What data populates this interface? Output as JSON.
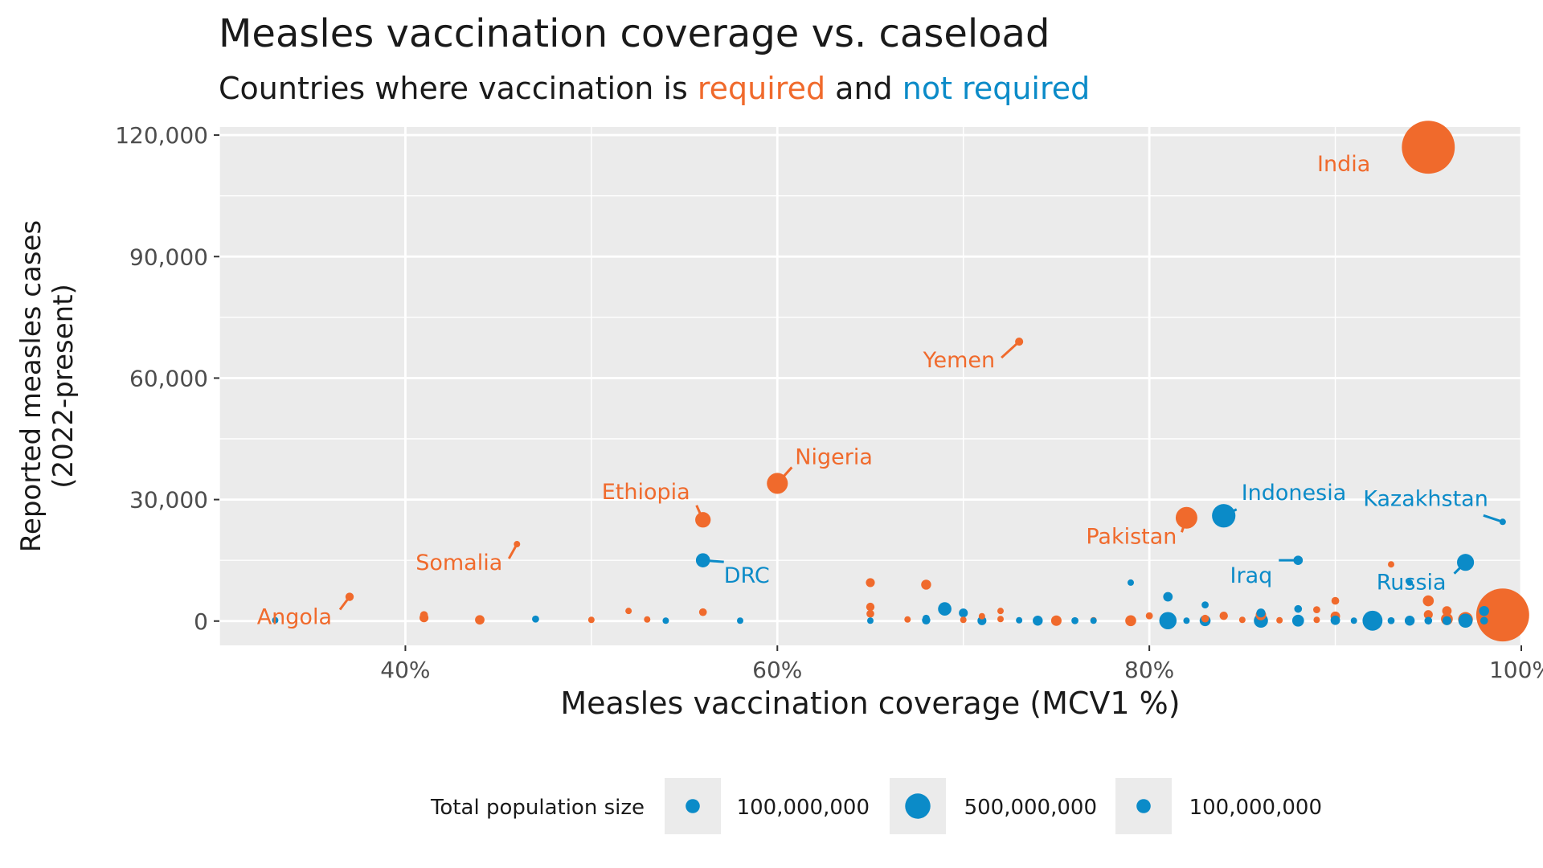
{
  "header": {
    "title": "Measles vaccination coverage vs. caseload",
    "subtitle_prefix": "Countries where vaccination is ",
    "subtitle_required": "required",
    "subtitle_and": " and ",
    "subtitle_not_required": "not required"
  },
  "colors": {
    "required": "#f06a2c",
    "not_required": "#0b8bc8",
    "panel": "#ebebeb",
    "grid": "#ffffff"
  },
  "chart_data": {
    "type": "scatter",
    "title": "Measles vaccination coverage vs. caseload",
    "subtitle": "Countries where vaccination is required and not required",
    "xlabel": "Measles vaccination coverage (MCV1 %)",
    "ylabel_lines": [
      "Reported measles cases",
      "(2022-present)"
    ],
    "xlim": [
      30,
      100
    ],
    "ylim": [
      -6000,
      122000
    ],
    "xticks": [
      {
        "value": 40,
        "label": "40%"
      },
      {
        "value": 60,
        "label": "60%"
      },
      {
        "value": 80,
        "label": "80%"
      },
      {
        "value": 100,
        "label": "100%"
      }
    ],
    "yticks": [
      {
        "value": 0,
        "label": "0"
      },
      {
        "value": 30000,
        "label": "30,000"
      },
      {
        "value": 60000,
        "label": "60,000"
      },
      {
        "value": 90000,
        "label": "90,000"
      },
      {
        "value": 120000,
        "label": "120,000"
      }
    ],
    "grid": true,
    "legend": {
      "title": "Total population size",
      "placement": "bottom",
      "entries": [
        {
          "label": "100,000,000",
          "population": 100000000
        },
        {
          "label": "500,000,000",
          "population": 500000000
        },
        {
          "label": "100,000,000",
          "population": 100000000
        }
      ]
    },
    "labeled_points": [
      {
        "name": "India",
        "x": 95,
        "y": 117000,
        "population": 1400000000,
        "group": "required"
      },
      {
        "name": "Yemen",
        "x": 73,
        "y": 69000,
        "population": 33000000,
        "group": "required"
      },
      {
        "name": "Nigeria",
        "x": 60,
        "y": 34000,
        "population": 220000000,
        "group": "required"
      },
      {
        "name": "Ethiopia",
        "x": 56,
        "y": 25000,
        "population": 120000000,
        "group": "required"
      },
      {
        "name": "Somalia",
        "x": 46,
        "y": 19000,
        "population": 17000000,
        "group": "required"
      },
      {
        "name": "Angola",
        "x": 37,
        "y": 6000,
        "population": 35000000,
        "group": "required"
      },
      {
        "name": "Pakistan",
        "x": 82,
        "y": 25500,
        "population": 235000000,
        "group": "required"
      },
      {
        "name": "DRC",
        "x": 56,
        "y": 15000,
        "population": 100000000,
        "group": "not_required"
      },
      {
        "name": "Indonesia",
        "x": 84,
        "y": 26000,
        "population": 275000000,
        "group": "not_required"
      },
      {
        "name": "Iraq",
        "x": 88,
        "y": 15000,
        "population": 44000000,
        "group": "not_required"
      },
      {
        "name": "Kazakhstan",
        "x": 99,
        "y": 24500,
        "population": 19000000,
        "group": "not_required"
      },
      {
        "name": "Russia",
        "x": 97,
        "y": 14500,
        "population": 144000000,
        "group": "not_required"
      }
    ],
    "points": [
      {
        "x": 99,
        "y": 1500,
        "population": 1400000000,
        "group": "required"
      },
      {
        "x": 41,
        "y": 1500,
        "population": 30000000,
        "group": "required"
      },
      {
        "x": 41,
        "y": 800,
        "population": 40000000,
        "group": "required"
      },
      {
        "x": 44,
        "y": 300,
        "population": 45000000,
        "group": "required"
      },
      {
        "x": 50,
        "y": 300,
        "population": 10000000,
        "group": "required"
      },
      {
        "x": 52,
        "y": 2500,
        "population": 15000000,
        "group": "required"
      },
      {
        "x": 53,
        "y": 400,
        "population": 8000000,
        "group": "required"
      },
      {
        "x": 56,
        "y": 2200,
        "population": 30000000,
        "group": "required"
      },
      {
        "x": 65,
        "y": 9500,
        "population": 40000000,
        "group": "required"
      },
      {
        "x": 65,
        "y": 3500,
        "population": 35000000,
        "group": "required"
      },
      {
        "x": 65,
        "y": 1800,
        "population": 30000000,
        "group": "required"
      },
      {
        "x": 67,
        "y": 400,
        "population": 12000000,
        "group": "required"
      },
      {
        "x": 68,
        "y": 9000,
        "population": 50000000,
        "group": "required"
      },
      {
        "x": 70,
        "y": 300,
        "population": 10000000,
        "group": "required"
      },
      {
        "x": 71,
        "y": 1200,
        "population": 15000000,
        "group": "required"
      },
      {
        "x": 72,
        "y": 2500,
        "population": 18000000,
        "group": "required"
      },
      {
        "x": 72,
        "y": 500,
        "population": 12000000,
        "group": "required"
      },
      {
        "x": 75,
        "y": 100,
        "population": 55000000,
        "group": "required"
      },
      {
        "x": 77,
        "y": 200,
        "population": 20000000,
        "group": "required"
      },
      {
        "x": 79,
        "y": 100,
        "population": 60000000,
        "group": "required"
      },
      {
        "x": 80,
        "y": 1300,
        "population": 25000000,
        "group": "required"
      },
      {
        "x": 83,
        "y": 600,
        "population": 30000000,
        "group": "required"
      },
      {
        "x": 84,
        "y": 1300,
        "population": 35000000,
        "group": "required"
      },
      {
        "x": 85,
        "y": 300,
        "population": 12000000,
        "group": "required"
      },
      {
        "x": 86,
        "y": 1500,
        "population": 55000000,
        "group": "required"
      },
      {
        "x": 87,
        "y": 200,
        "population": 10000000,
        "group": "required"
      },
      {
        "x": 89,
        "y": 2800,
        "population": 25000000,
        "group": "required"
      },
      {
        "x": 89,
        "y": 300,
        "population": 20000000,
        "group": "required"
      },
      {
        "x": 90,
        "y": 5000,
        "population": 30000000,
        "group": "required"
      },
      {
        "x": 90,
        "y": 1200,
        "population": 45000000,
        "group": "required"
      },
      {
        "x": 93,
        "y": 14000,
        "population": 20000000,
        "group": "required"
      },
      {
        "x": 95,
        "y": 5000,
        "population": 60000000,
        "group": "required"
      },
      {
        "x": 95,
        "y": 1600,
        "population": 40000000,
        "group": "required"
      },
      {
        "x": 96,
        "y": 2500,
        "population": 45000000,
        "group": "required"
      },
      {
        "x": 96,
        "y": 500,
        "population": 70000000,
        "group": "required"
      },
      {
        "x": 97,
        "y": 400,
        "population": 110000000,
        "group": "required"
      },
      {
        "x": 98,
        "y": 200,
        "population": 50000000,
        "group": "required"
      },
      {
        "x": 33,
        "y": 200,
        "population": 15000000,
        "group": "not_required"
      },
      {
        "x": 47,
        "y": 500,
        "population": 25000000,
        "group": "not_required"
      },
      {
        "x": 54,
        "y": 100,
        "population": 15000000,
        "group": "not_required"
      },
      {
        "x": 58,
        "y": 100,
        "population": 12000000,
        "group": "not_required"
      },
      {
        "x": 65,
        "y": 100,
        "population": 12000000,
        "group": "not_required"
      },
      {
        "x": 68,
        "y": 200,
        "population": 35000000,
        "group": "not_required"
      },
      {
        "x": 68,
        "y": 700,
        "population": 25000000,
        "group": "not_required"
      },
      {
        "x": 69,
        "y": 3000,
        "population": 90000000,
        "group": "not_required"
      },
      {
        "x": 70,
        "y": 2000,
        "population": 40000000,
        "group": "not_required"
      },
      {
        "x": 71,
        "y": 100,
        "population": 40000000,
        "group": "not_required"
      },
      {
        "x": 73,
        "y": 200,
        "population": 15000000,
        "group": "not_required"
      },
      {
        "x": 74,
        "y": 100,
        "population": 50000000,
        "group": "not_required"
      },
      {
        "x": 76,
        "y": 100,
        "population": 25000000,
        "group": "not_required"
      },
      {
        "x": 77,
        "y": 100,
        "population": 20000000,
        "group": "not_required"
      },
      {
        "x": 79,
        "y": 9500,
        "population": 15000000,
        "group": "not_required"
      },
      {
        "x": 81,
        "y": 6000,
        "population": 45000000,
        "group": "not_required"
      },
      {
        "x": 81,
        "y": 100,
        "population": 150000000,
        "group": "not_required"
      },
      {
        "x": 82,
        "y": 100,
        "population": 20000000,
        "group": "not_required"
      },
      {
        "x": 83,
        "y": 4000,
        "population": 25000000,
        "group": "not_required"
      },
      {
        "x": 83,
        "y": 100,
        "population": 60000000,
        "group": "not_required"
      },
      {
        "x": 86,
        "y": 2000,
        "population": 40000000,
        "group": "not_required"
      },
      {
        "x": 86,
        "y": 100,
        "population": 100000000,
        "group": "not_required"
      },
      {
        "x": 88,
        "y": 3000,
        "population": 30000000,
        "group": "not_required"
      },
      {
        "x": 88,
        "y": 100,
        "population": 70000000,
        "group": "not_required"
      },
      {
        "x": 90,
        "y": 200,
        "population": 45000000,
        "group": "not_required"
      },
      {
        "x": 91,
        "y": 100,
        "population": 20000000,
        "group": "not_required"
      },
      {
        "x": 92,
        "y": 100,
        "population": 200000000,
        "group": "not_required"
      },
      {
        "x": 93,
        "y": 100,
        "population": 25000000,
        "group": "not_required"
      },
      {
        "x": 94,
        "y": 9500,
        "population": 12000000,
        "group": "not_required"
      },
      {
        "x": 94,
        "y": 100,
        "population": 50000000,
        "group": "not_required"
      },
      {
        "x": 95,
        "y": 100,
        "population": 30000000,
        "group": "not_required"
      },
      {
        "x": 96,
        "y": 100,
        "population": 40000000,
        "group": "not_required"
      },
      {
        "x": 97,
        "y": 100,
        "population": 100000000,
        "group": "not_required"
      },
      {
        "x": 98,
        "y": 2500,
        "population": 50000000,
        "group": "not_required"
      },
      {
        "x": 98,
        "y": 100,
        "population": 30000000,
        "group": "not_required"
      }
    ]
  }
}
